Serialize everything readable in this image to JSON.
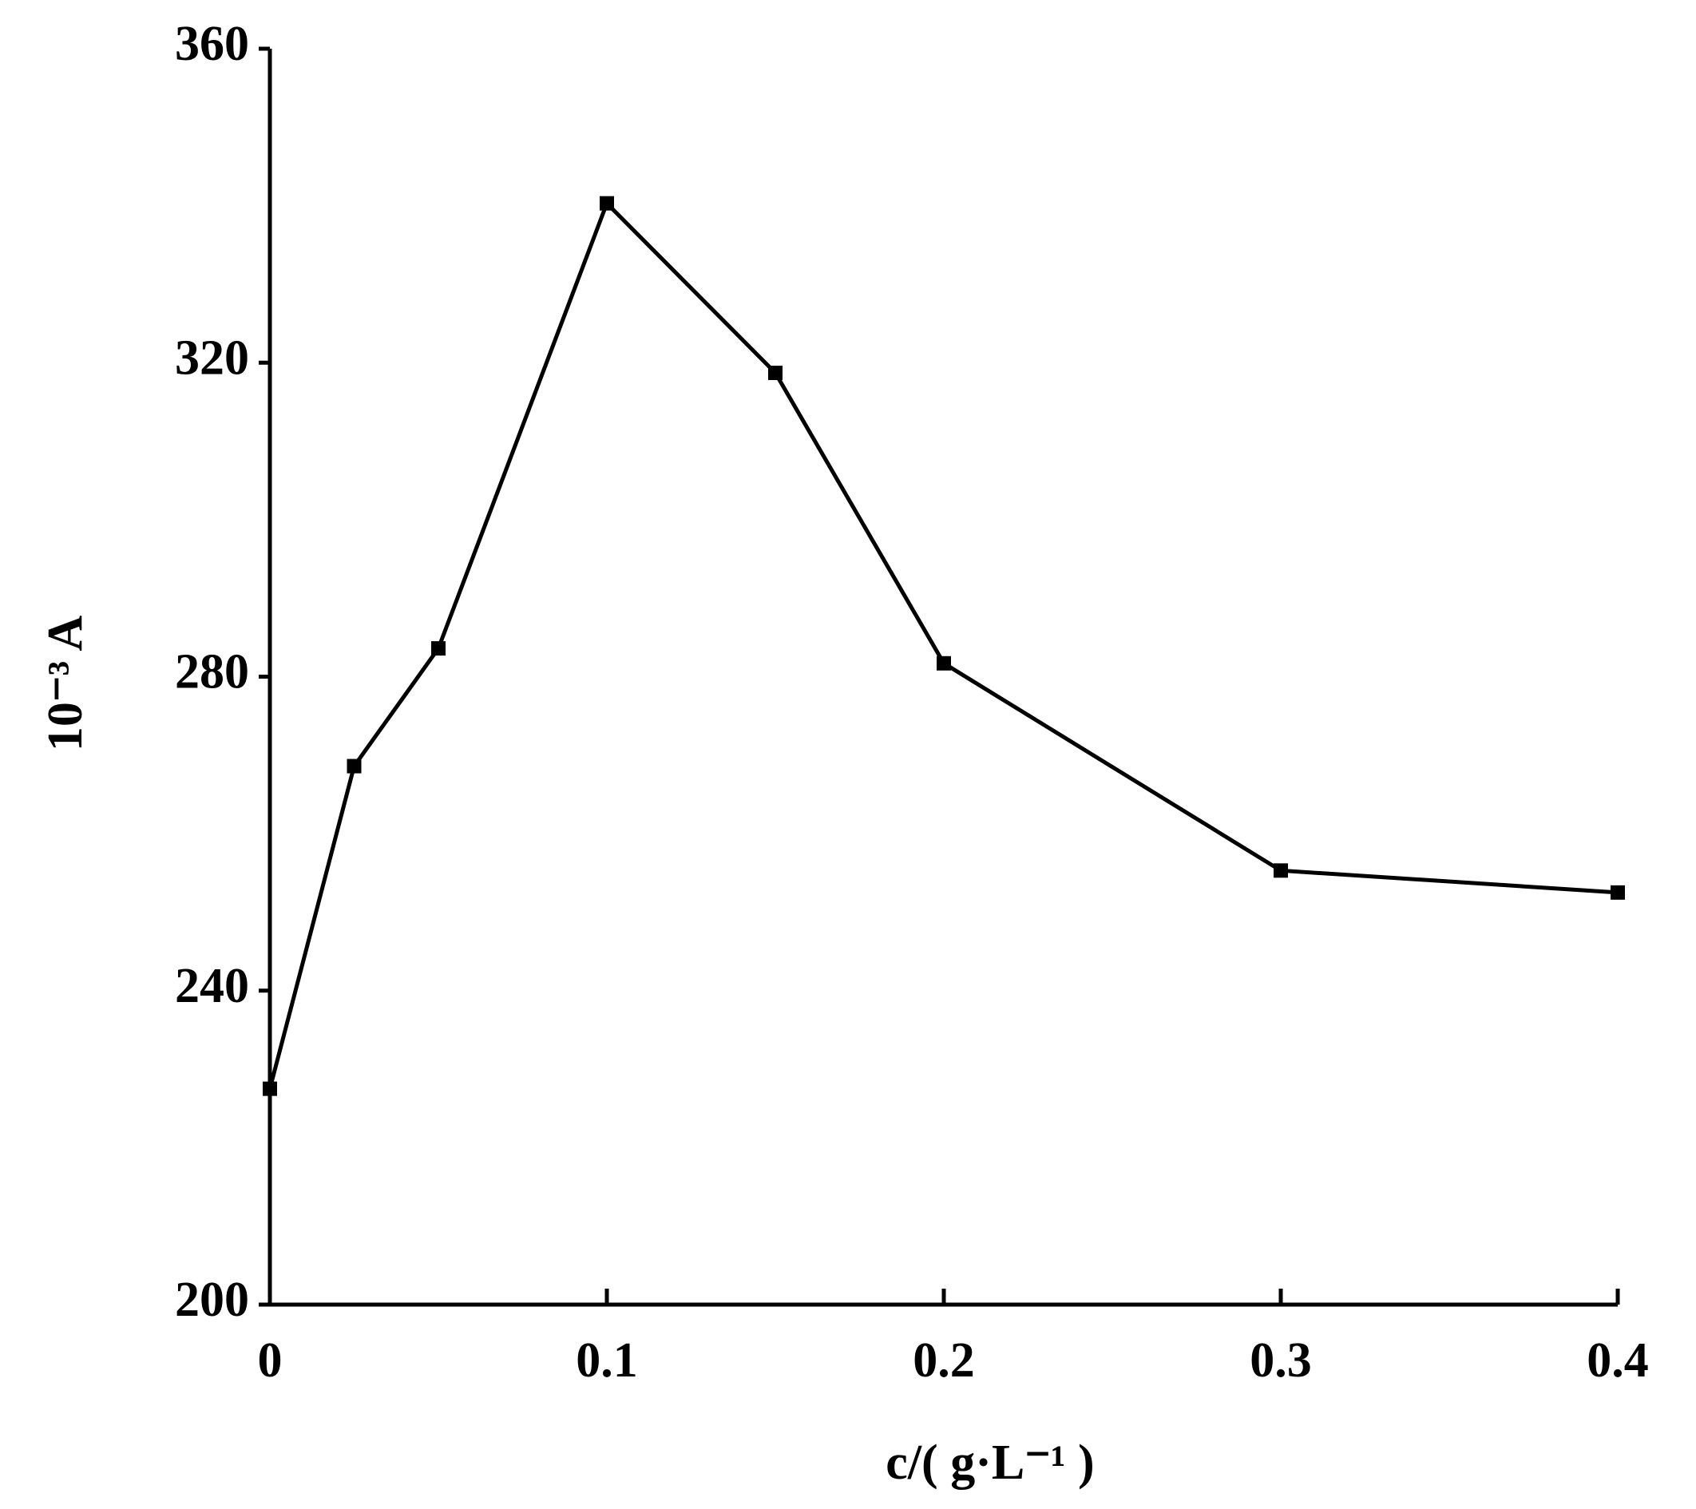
{
  "chart_data": {
    "type": "line",
    "x_label": "c/( g·L⁻¹ )",
    "y_label": "10⁻³ A",
    "x": [
      0,
      0.025,
      0.05,
      0.1,
      0.15,
      0.2,
      0.3,
      0.4
    ],
    "series": [
      {
        "color": "#000000",
        "values": [
          227.5,
          268.6,
          283.6,
          340.3,
          318.7,
          281.7,
          255.3,
          252.5
        ]
      }
    ],
    "xlim": [
      0,
      0.4
    ],
    "xticks": [
      0,
      0.1,
      0.2,
      0.3,
      0.4
    ],
    "ylim": [
      200,
      360
    ],
    "yticks": [
      200,
      240,
      280,
      320,
      360
    ],
    "grid": false
  }
}
